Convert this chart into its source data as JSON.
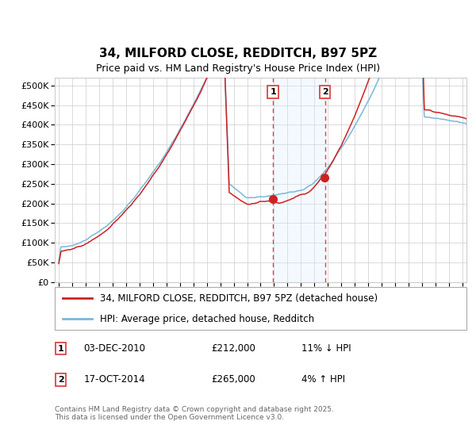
{
  "title": "34, MILFORD CLOSE, REDDITCH, B97 5PZ",
  "subtitle": "Price paid vs. HM Land Registry's House Price Index (HPI)",
  "legend_line1": "34, MILFORD CLOSE, REDDITCH, B97 5PZ (detached house)",
  "legend_line2": "HPI: Average price, detached house, Redditch",
  "annotation1_date": "03-DEC-2010",
  "annotation1_price": "£212,000",
  "annotation1_hpi": "11% ↓ HPI",
  "annotation2_date": "17-OCT-2014",
  "annotation2_price": "£265,000",
  "annotation2_hpi": "4% ↑ HPI",
  "footer": "Contains HM Land Registry data © Crown copyright and database right 2025.\nThis data is licensed under the Open Government Licence v3.0.",
  "ylim": [
    0,
    520000
  ],
  "yticks": [
    0,
    50000,
    100000,
    150000,
    200000,
    250000,
    300000,
    350000,
    400000,
    450000,
    500000
  ],
  "ytick_labels": [
    "£0",
    "£50K",
    "£100K",
    "£150K",
    "£200K",
    "£250K",
    "£300K",
    "£350K",
    "£400K",
    "£450K",
    "£500K"
  ],
  "hpi_color": "#7ab8d9",
  "price_color": "#cc2222",
  "vline_color": "#dd4444",
  "shade_color": "#ddeeff",
  "background_color": "#ffffff",
  "grid_color": "#cccccc",
  "anno1_x_year": 2010.92,
  "anno2_x_year": 2014.79,
  "anno1_price": 212000,
  "anno2_price": 265000,
  "xmin": 1994.7,
  "xmax": 2025.3
}
